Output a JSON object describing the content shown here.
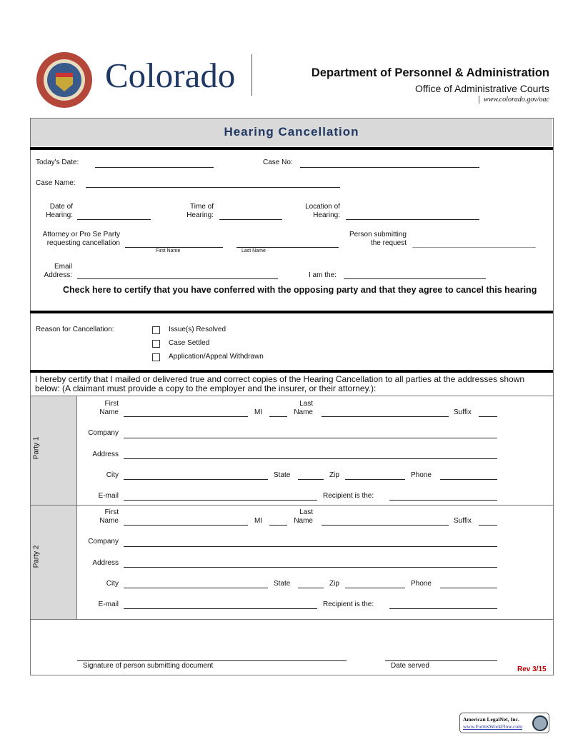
{
  "header": {
    "logo_text": "Colorado",
    "seal_text": "STATE OF COLORADO",
    "seal_year": "1876",
    "dept": "Department of Personnel & Administration",
    "office": "Office of Administrative Courts",
    "url": "www.colorado.gov/oac"
  },
  "title": "Hearing Cancellation",
  "section1": {
    "todays_date": "Today's Date:",
    "case_no": "Case No:",
    "case_name": "Case Name:",
    "date_of": "Date of",
    "hearing": "Hearing:",
    "time_of": "Time of",
    "location_of": "Location of",
    "attorney": "Attorney or Pro Se Party",
    "requesting": "requesting cancellation",
    "first_name": "First Name",
    "last_name": "Last Name",
    "person_submitting": "Person submitting",
    "the_request": "the request",
    "email": "Email",
    "address": "Address:",
    "i_am_the": "I am the:",
    "certify_check": "Check here to certify that you have conferred with the opposing party and that they agree to cancel this hearing"
  },
  "section2": {
    "reason": "Reason for Cancellation:",
    "options": [
      "Issue(s) Resolved",
      "Case Settled",
      "Application/Appeal Withdrawn"
    ]
  },
  "certify_text": "I hereby certify that I mailed or delivered true and correct copies of the Hearing Cancellation to all parties at the addresses shown below:  (A claimant must provide a copy to the employer and the insurer, or their attorney.):",
  "party_labels": {
    "first": "First",
    "name": "Name",
    "mi": "MI",
    "last": "Last",
    "suffix": "Suffix",
    "company": "Company",
    "address": "Address",
    "city": "City",
    "state": "State",
    "zip": "Zip",
    "phone": "Phone",
    "email": "E-mail",
    "recipient": "Recipient is the:"
  },
  "parties": [
    "Party 1",
    "Party 2"
  ],
  "footer": {
    "signature": "Signature of person submitting document",
    "date_served": "Date served",
    "rev": "Rev 3/15",
    "legalnet": "American LegalNet, Inc.",
    "legalnet_url": "www.FormsWorkFlow.com"
  },
  "colors": {
    "title": "#1f3864",
    "rev": "#c00000",
    "band": "#d9d9d9"
  }
}
